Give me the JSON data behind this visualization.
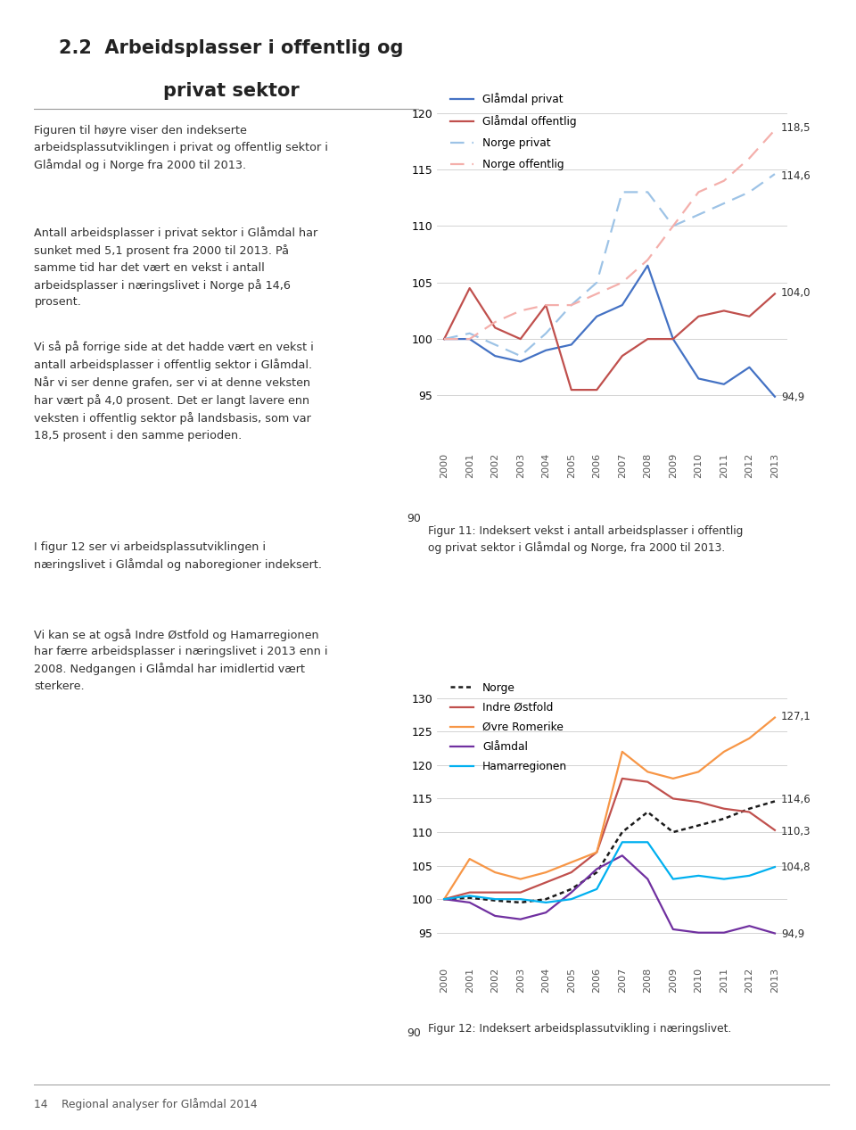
{
  "years": [
    2000,
    2001,
    2002,
    2003,
    2004,
    2005,
    2006,
    2007,
    2008,
    2009,
    2010,
    2011,
    2012,
    2013
  ],
  "chart1": {
    "glaamdal_privat": [
      100,
      100,
      98.5,
      98,
      99,
      99.5,
      102,
      103,
      106.5,
      100,
      96.5,
      96.0,
      97.5,
      94.9
    ],
    "glaamdal_offentlig": [
      100,
      104.5,
      101,
      100,
      103,
      95.5,
      95.5,
      98.5,
      100,
      100,
      102,
      102.5,
      102,
      104.0
    ],
    "norge_privat": [
      100,
      100.5,
      99.5,
      98.5,
      100.5,
      103,
      105,
      113,
      113,
      110,
      111,
      112,
      113,
      114.6
    ],
    "norge_offentlig": [
      100,
      100,
      101.5,
      102.5,
      103,
      103,
      104,
      105,
      107,
      110,
      113,
      114,
      116,
      118.5
    ],
    "end_labels": {
      "glaamdal_privat": "94,9",
      "glaamdal_offentlig": "104,0",
      "norge_privat": "114,6",
      "norge_offentlig": "118,5"
    },
    "legend_labels": [
      "Glåmdal privat",
      "Glåmdal offentlig",
      "Norge privat",
      "Norge offentlig"
    ],
    "ylim": [
      90,
      122
    ],
    "yticks": [
      95,
      100,
      105,
      110,
      115,
      120
    ]
  },
  "chart2": {
    "norge": [
      100,
      100.2,
      99.8,
      99.5,
      100.0,
      101.5,
      104,
      110,
      113,
      110,
      111,
      112,
      113.5,
      114.6
    ],
    "indre_ostfold": [
      100,
      101,
      101,
      101,
      102.5,
      104,
      107,
      118,
      117.5,
      115,
      114.5,
      113.5,
      113,
      110.3
    ],
    "ovre_romerike": [
      100,
      106,
      104,
      103,
      104,
      105.5,
      107,
      122,
      119,
      118,
      119,
      122,
      124,
      127.1
    ],
    "glamdal": [
      100,
      99.5,
      97.5,
      97,
      98,
      101,
      104.5,
      106.5,
      103,
      95.5,
      95,
      95,
      96,
      94.9
    ],
    "hamarregionen": [
      100,
      100.5,
      100,
      100,
      99.5,
      100,
      101.5,
      108.5,
      108.5,
      103,
      103.5,
      103,
      103.5,
      104.8
    ],
    "end_labels": {
      "norge": "114,6",
      "indre_ostfold": "110,3",
      "ovre_romerike": "127,1",
      "glamdal": "94,9",
      "hamarregionen": "104,8"
    },
    "legend_labels": [
      "Norge",
      "Indre Østfold",
      "Øvre Romerike",
      "Glåmdal",
      "Hamarregionen"
    ],
    "ylim": [
      90,
      133
    ],
    "yticks": [
      95,
      100,
      105,
      110,
      115,
      120,
      125,
      130
    ]
  },
  "colors": {
    "glaamdal_privat": "#4472C4",
    "glaamdal_offentlig": "#C0504D",
    "norge_privat": "#9DC3E6",
    "norge_offentlig": "#F4AFAB",
    "norge": "#1A1A1A",
    "indre_ostfold": "#C0504D",
    "ovre_romerike": "#F79646",
    "glamdal": "#7030A0",
    "hamarregionen": "#00B0F0"
  },
  "title_line1": "2.2  Arbeidsplasser i offentlig og",
  "title_line2": "privat sektor",
  "left_text_blocks": [
    "Figuren til høyre viser den indekserte\narbeidsplassutviklingen i privat og offentlig sektor i\nGlåmdal og i Norge fra 2000 til 2013.",
    "Antall arbeidsplasser i privat sektor i Glåmdal har\nsunket med 5,1 prosent fra 2000 til 2013. På\nsamme tid har det vært en vekst i antall\narbeidsplasser i næringslivet i Norge på 14,6\nprosent.",
    "Vi så på forrige side at det hadde vært en vekst i\nantall arbeidsplasser i offentlig sektor i Glåmdal.\nNår vi ser denne grafen, ser vi at denne veksten\nhar vært på 4,0 prosent. Det er langt lavere enn\nveksten i offentlig sektor på landsbasis, som var\n18,5 prosent i den samme perioden."
  ],
  "left_text2": [
    "I figur 12 ser vi arbeidsplassutviklingen i\nnæringslivet i Glåmdal og naboregioner indeksert.",
    "Vi kan se at også Indre Østfold og Hamarregionen\nhar færre arbeidsplasser i næringslivet i 2013 enn i\n2008. Nedgangen i Glåmdal har imidlertid vært\nsterkere."
  ],
  "fig11_caption": "Figur 11: Indeksert vekst i antall arbeidsplasser i offentlig\nog privat sektor i Glåmdal og Norge, fra 2000 til 2013.",
  "fig12_caption": "Figur 12: Indeksert arbeidsplassutvikling i næringslivet.",
  "footer": "14    Regional analyser for Glåmdal 2014",
  "background_color": "#FFFFFF",
  "text_color": "#404040",
  "grid_color": "#CCCCCC",
  "separator_color": "#999999"
}
